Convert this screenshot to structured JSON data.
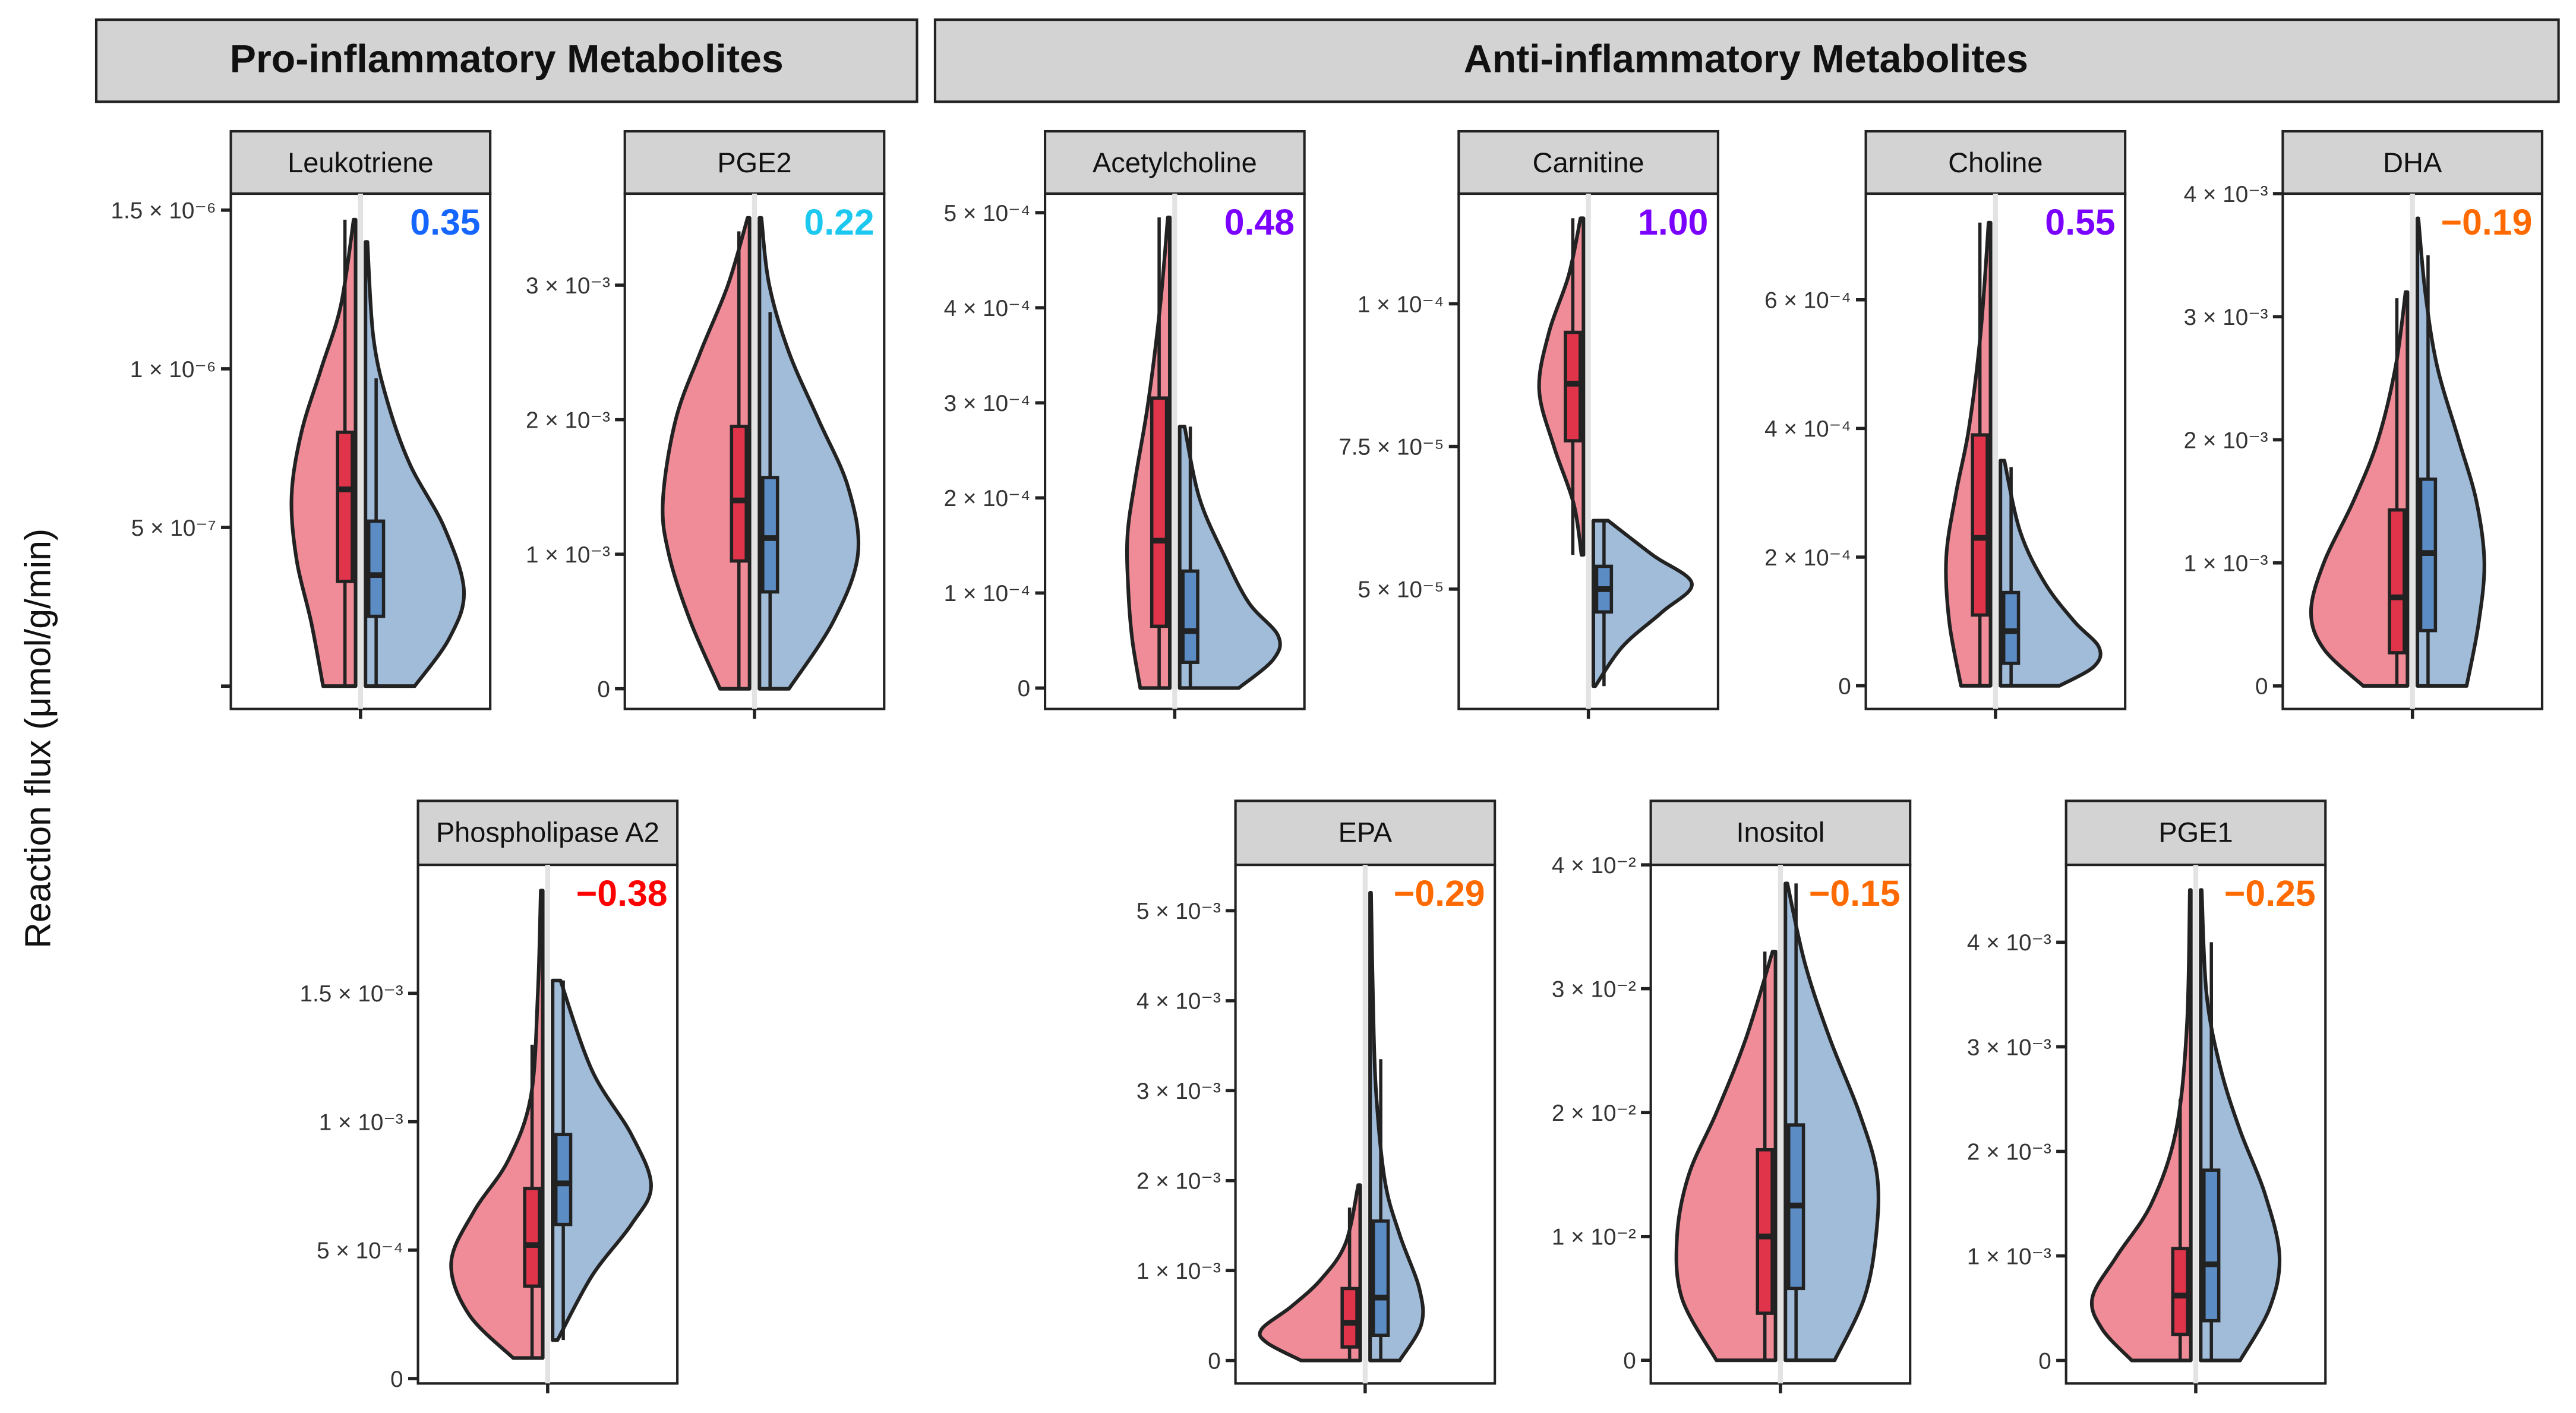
{
  "headers": {
    "pro": "Pro-inflammatory Metabolites",
    "anti": "Anti-inflammatory Metabolites"
  },
  "y_axis_label": "Reaction flux (μmol/g/min)",
  "colors": {
    "group_a_fill": "#ef8c97",
    "group_a_box": "#e0344b",
    "group_b_fill": "#a0bcd9",
    "group_b_box": "#5b8cc4",
    "strip_bg": "#d3d3d3"
  },
  "chart_data": [
    {
      "type": "violin",
      "title": "Leukotriene",
      "correlation": "0.35",
      "correlation_color": "#1565ff",
      "ylim": [
        -7.2e-08,
        1.552e-06
      ],
      "ticks": [
        {
          "value": 0,
          "label": ""
        },
        {
          "value": 5e-07,
          "label": "5 × 10⁻⁷"
        },
        {
          "value": 1e-06,
          "label": "1 × 10⁻⁶"
        },
        {
          "value": 1.5e-06,
          "label": "1.5 × 10⁻⁶"
        }
      ],
      "group_a": {
        "density": [
          [
            0,
            0.33
          ],
          [
            2e-07,
            0.45
          ],
          [
            4e-07,
            0.6
          ],
          [
            6e-07,
            0.65
          ],
          [
            8e-07,
            0.55
          ],
          [
            1e-06,
            0.35
          ],
          [
            1.2e-06,
            0.15
          ],
          [
            1.47e-06,
            0.02
          ]
        ],
        "box": {
          "min": 0,
          "q1": 3.3e-07,
          "median": 6.2e-07,
          "q3": 8e-07,
          "max": 1.47e-06
        }
      },
      "group_b": {
        "density": [
          [
            0,
            0.5
          ],
          [
            1.5e-07,
            0.85
          ],
          [
            3e-07,
            1.0
          ],
          [
            5e-07,
            0.8
          ],
          [
            7e-07,
            0.45
          ],
          [
            9e-07,
            0.22
          ],
          [
            1.1e-06,
            0.08
          ],
          [
            1.4e-06,
            0.02
          ]
        ],
        "box": {
          "min": 0,
          "q1": 2.2e-07,
          "median": 3.5e-07,
          "q3": 5.2e-07,
          "max": 9.7e-07
        }
      }
    },
    {
      "type": "violin",
      "title": "PGE2",
      "correlation": "0.22",
      "correlation_color": "#1cc8f0",
      "ylim": [
        -0.00015,
        0.00368
      ],
      "ticks": [
        {
          "value": 0,
          "label": "0"
        },
        {
          "value": 0.001,
          "label": "1 × 10⁻³"
        },
        {
          "value": 0.002,
          "label": "2 × 10⁻³"
        },
        {
          "value": 0.003,
          "label": "3 × 10⁻³"
        }
      ],
      "group_a": {
        "density": [
          [
            0,
            0.3
          ],
          [
            0.0005,
            0.6
          ],
          [
            0.001,
            0.82
          ],
          [
            0.0014,
            0.88
          ],
          [
            0.002,
            0.75
          ],
          [
            0.0025,
            0.5
          ],
          [
            0.003,
            0.22
          ],
          [
            0.0035,
            0.02
          ]
        ],
        "box": {
          "min": 0,
          "q1": 0.00095,
          "median": 0.0014,
          "q3": 0.00195,
          "max": 0.0034
        }
      },
      "group_b": {
        "density": [
          [
            0,
            0.3
          ],
          [
            0.0005,
            0.75
          ],
          [
            0.001,
            1.0
          ],
          [
            0.0015,
            0.9
          ],
          [
            0.002,
            0.6
          ],
          [
            0.0025,
            0.3
          ],
          [
            0.003,
            0.1
          ],
          [
            0.0035,
            0.02
          ]
        ],
        "box": {
          "min": 0,
          "q1": 0.00072,
          "median": 0.00112,
          "q3": 0.00157,
          "max": 0.0028
        }
      }
    },
    {
      "type": "violin",
      "title": "Acetylcholine",
      "correlation": "0.48",
      "correlation_color": "#7a00ff",
      "ylim": [
        -2.2e-05,
        0.00052
      ],
      "ticks": [
        {
          "value": 0,
          "label": "0"
        },
        {
          "value": 0.0001,
          "label": "1 × 10⁻⁴"
        },
        {
          "value": 0.0002,
          "label": "2 × 10⁻⁴"
        },
        {
          "value": 0.0003,
          "label": "3 × 10⁻⁴"
        },
        {
          "value": 0.0004,
          "label": "4 × 10⁻⁴"
        },
        {
          "value": 0.0005,
          "label": "5 × 10⁻⁴"
        }
      ],
      "group_a": {
        "density": [
          [
            0,
            0.3
          ],
          [
            5e-05,
            0.38
          ],
          [
            0.0001,
            0.42
          ],
          [
            0.00016,
            0.43
          ],
          [
            0.00022,
            0.35
          ],
          [
            0.0003,
            0.22
          ],
          [
            0.0004,
            0.1
          ],
          [
            0.000495,
            0.02
          ]
        ],
        "box": {
          "min": 0,
          "q1": 6.5e-05,
          "median": 0.000155,
          "q3": 0.000305,
          "max": 0.000495
        }
      },
      "group_b": {
        "density": [
          [
            0,
            0.6
          ],
          [
            3e-05,
            0.95
          ],
          [
            5.5e-05,
            1.0
          ],
          [
            9e-05,
            0.7
          ],
          [
            0.00014,
            0.45
          ],
          [
            0.0002,
            0.2
          ],
          [
            0.000275,
            0.05
          ]
        ],
        "box": {
          "min": 0,
          "q1": 2.7e-05,
          "median": 6e-05,
          "q3": 0.000123,
          "max": 0.000275
        }
      }
    },
    {
      "type": "violin",
      "title": "Carnitine",
      "correlation": "1.00",
      "correlation_color": "#7a00ff",
      "ylim": [
        2.9e-05,
        0.0001193
      ],
      "ticks": [
        {
          "value": 5e-05,
          "label": "5 × 10⁻⁵"
        },
        {
          "value": 7.5e-05,
          "label": "7.5 × 10⁻⁵"
        },
        {
          "value": 0.0001,
          "label": "1 × 10⁻⁴"
        }
      ],
      "group_a": {
        "density": [
          [
            5.6e-05,
            0.02
          ],
          [
            6.5e-05,
            0.1
          ],
          [
            7.5e-05,
            0.3
          ],
          [
            8.5e-05,
            0.45
          ],
          [
            9.5e-05,
            0.35
          ],
          [
            0.000105,
            0.15
          ],
          [
            0.000115,
            0.03
          ]
        ],
        "box": {
          "min": 5.6e-05,
          "q1": 7.6e-05,
          "median": 8.6e-05,
          "q3": 9.5e-05,
          "max": 0.000115
        }
      },
      "group_b": {
        "density": [
          [
            3.3e-05,
            0.02
          ],
          [
            4e-05,
            0.3
          ],
          [
            4.6e-05,
            0.7
          ],
          [
            5.1e-05,
            1.0
          ],
          [
            5.6e-05,
            0.6
          ],
          [
            6.2e-05,
            0.15
          ]
        ],
        "box": {
          "min": 3.3e-05,
          "q1": 4.6e-05,
          "median": 5e-05,
          "q3": 5.4e-05,
          "max": 6.2e-05
        }
      }
    },
    {
      "type": "violin",
      "title": "Choline",
      "correlation": "0.55",
      "correlation_color": "#7a00ff",
      "ylim": [
        -3.6e-05,
        0.000765
      ],
      "ticks": [
        {
          "value": 0,
          "label": "0"
        },
        {
          "value": 0.0002,
          "label": "2 × 10⁻⁴"
        },
        {
          "value": 0.0004,
          "label": "4 × 10⁻⁴"
        },
        {
          "value": 0.0006,
          "label": "6 × 10⁻⁴"
        }
      ],
      "group_a": {
        "density": [
          [
            0,
            0.3
          ],
          [
            0.0001,
            0.42
          ],
          [
            0.0002,
            0.45
          ],
          [
            0.0003,
            0.35
          ],
          [
            0.0004,
            0.22
          ],
          [
            0.00055,
            0.1
          ],
          [
            0.00072,
            0.02
          ]
        ],
        "box": {
          "min": 0,
          "q1": 0.00011,
          "median": 0.00023,
          "q3": 0.00039,
          "max": 0.00072
        }
      },
      "group_b": {
        "density": [
          [
            0,
            0.6
          ],
          [
            3e-05,
            0.95
          ],
          [
            6e-05,
            1.0
          ],
          [
            0.0001,
            0.75
          ],
          [
            0.00016,
            0.45
          ],
          [
            0.00024,
            0.2
          ],
          [
            0.00035,
            0.04
          ]
        ],
        "box": {
          "min": 0,
          "q1": 3.5e-05,
          "median": 8.5e-05,
          "q3": 0.000145,
          "max": 0.00034
        }
      }
    },
    {
      "type": "violin",
      "title": "DHA",
      "correlation": "−0.19",
      "correlation_color": "#ff6a00",
      "ylim": [
        -0.000187,
        0.004
      ],
      "ticks": [
        {
          "value": 0,
          "label": "0"
        },
        {
          "value": 0.001,
          "label": "1 × 10⁻³"
        },
        {
          "value": 0.002,
          "label": "2 × 10⁻³"
        },
        {
          "value": 0.003,
          "label": "3 × 10⁻³"
        },
        {
          "value": 0.004,
          "label": "4 × 10⁻³"
        }
      ],
      "group_a": {
        "density": [
          [
            0,
            0.45
          ],
          [
            0.0003,
            0.85
          ],
          [
            0.0006,
            0.98
          ],
          [
            0.001,
            0.85
          ],
          [
            0.0015,
            0.55
          ],
          [
            0.002,
            0.3
          ],
          [
            0.0026,
            0.12
          ],
          [
            0.0032,
            0.02
          ]
        ],
        "box": {
          "min": 0,
          "q1": 0.00027,
          "median": 0.00072,
          "q3": 0.00143,
          "max": 0.00315
        }
      },
      "group_b": {
        "density": [
          [
            0,
            0.5
          ],
          [
            0.0005,
            0.62
          ],
          [
            0.001,
            0.68
          ],
          [
            0.0015,
            0.6
          ],
          [
            0.002,
            0.42
          ],
          [
            0.0026,
            0.2
          ],
          [
            0.0032,
            0.08
          ],
          [
            0.0038,
            0.01
          ]
        ],
        "box": {
          "min": 0,
          "q1": 0.00045,
          "median": 0.00108,
          "q3": 0.00168,
          "max": 0.0035
        }
      }
    },
    {
      "type": "violin",
      "title": "Phospholipase A2",
      "correlation": "−0.38",
      "correlation_color": "#ff0000",
      "ylim": [
        -1.9e-05,
        0.002
      ],
      "ticks": [
        {
          "value": 0,
          "label": "0"
        },
        {
          "value": 0.0005,
          "label": "5 × 10⁻⁴"
        },
        {
          "value": 0.001,
          "label": "1 × 10⁻³"
        },
        {
          "value": 0.0015,
          "label": "1.5 × 10⁻³"
        }
      ],
      "group_a": {
        "density": [
          [
            8e-05,
            0.3
          ],
          [
            0.00025,
            0.75
          ],
          [
            0.00045,
            0.93
          ],
          [
            0.00065,
            0.7
          ],
          [
            0.00085,
            0.35
          ],
          [
            0.0011,
            0.12
          ],
          [
            0.0015,
            0.05
          ],
          [
            0.0019,
            0.02
          ]
        ],
        "box": {
          "min": 8e-05,
          "q1": 0.00036,
          "median": 0.00052,
          "q3": 0.00074,
          "max": 0.0013
        }
      },
      "group_b": {
        "density": [
          [
            0.00015,
            0.05
          ],
          [
            0.0004,
            0.4
          ],
          [
            0.0006,
            0.8
          ],
          [
            0.00075,
            1.0
          ],
          [
            0.00095,
            0.8
          ],
          [
            0.0012,
            0.4
          ],
          [
            0.00155,
            0.08
          ]
        ],
        "box": {
          "min": 0.00015,
          "q1": 0.0006,
          "median": 0.00076,
          "q3": 0.00095,
          "max": 0.00155
        }
      }
    },
    {
      "type": "violin",
      "title": "EPA",
      "correlation": "−0.29",
      "correlation_color": "#ff6a00",
      "ylim": [
        -0.000255,
        0.00551
      ],
      "ticks": [
        {
          "value": 0,
          "label": "0"
        },
        {
          "value": 0.001,
          "label": "1 × 10⁻³"
        },
        {
          "value": 0.002,
          "label": "2 × 10⁻³"
        },
        {
          "value": 0.003,
          "label": "3 × 10⁻³"
        },
        {
          "value": 0.004,
          "label": "4 × 10⁻³"
        },
        {
          "value": 0.005,
          "label": "5 × 10⁻³"
        }
      ],
      "group_a": {
        "density": [
          [
            0,
            0.6
          ],
          [
            0.0002,
            0.95
          ],
          [
            0.00035,
            1.0
          ],
          [
            0.0006,
            0.7
          ],
          [
            0.0009,
            0.4
          ],
          [
            0.0013,
            0.15
          ],
          [
            0.00195,
            0.02
          ]
        ],
        "box": {
          "min": 0,
          "q1": 0.00015,
          "median": 0.00042,
          "q3": 0.0008,
          "max": 0.0017
        }
      },
      "group_b": {
        "density": [
          [
            0,
            0.3
          ],
          [
            0.0004,
            0.52
          ],
          [
            0.0008,
            0.5
          ],
          [
            0.0014,
            0.3
          ],
          [
            0.002,
            0.15
          ],
          [
            0.003,
            0.06
          ],
          [
            0.004,
            0.03
          ],
          [
            0.0052,
            0.01
          ]
        ],
        "box": {
          "min": 0,
          "q1": 0.00028,
          "median": 0.0007,
          "q3": 0.00155,
          "max": 0.00335
        }
      }
    },
    {
      "type": "violin",
      "title": "Inositol",
      "correlation": "−0.15",
      "correlation_color": "#ff6a00",
      "ylim": [
        -0.00187,
        0.04
      ],
      "ticks": [
        {
          "value": 0,
          "label": "0"
        },
        {
          "value": 0.01,
          "label": "1 × 10⁻²"
        },
        {
          "value": 0.02,
          "label": "2 × 10⁻²"
        },
        {
          "value": 0.03,
          "label": "3 × 10⁻²"
        },
        {
          "value": 0.04,
          "label": "4 × 10⁻²"
        }
      ],
      "group_a": {
        "density": [
          [
            0,
            0.6
          ],
          [
            0.005,
            0.95
          ],
          [
            0.01,
            1.0
          ],
          [
            0.015,
            0.88
          ],
          [
            0.02,
            0.6
          ],
          [
            0.026,
            0.3
          ],
          [
            0.033,
            0.03
          ]
        ],
        "box": {
          "min": 0,
          "q1": 0.0038,
          "median": 0.01,
          "q3": 0.017,
          "max": 0.033
        }
      },
      "group_b": {
        "density": [
          [
            0,
            0.5
          ],
          [
            0.005,
            0.8
          ],
          [
            0.01,
            0.92
          ],
          [
            0.015,
            0.93
          ],
          [
            0.02,
            0.75
          ],
          [
            0.026,
            0.45
          ],
          [
            0.032,
            0.2
          ],
          [
            0.0385,
            0.02
          ]
        ],
        "box": {
          "min": 0,
          "q1": 0.0058,
          "median": 0.0125,
          "q3": 0.019,
          "max": 0.0385
        }
      }
    },
    {
      "type": "violin",
      "title": "PGE1",
      "correlation": "−0.25",
      "correlation_color": "#ff6a00",
      "ylim": [
        -0.00022,
        0.00474
      ],
      "ticks": [
        {
          "value": 0,
          "label": "0"
        },
        {
          "value": 0.001,
          "label": "1 × 10⁻³"
        },
        {
          "value": 0.002,
          "label": "2 × 10⁻³"
        },
        {
          "value": 0.003,
          "label": "3 × 10⁻³"
        },
        {
          "value": 0.004,
          "label": "4 × 10⁻³"
        }
      ],
      "group_a": {
        "density": [
          [
            0,
            0.6
          ],
          [
            0.0003,
            0.9
          ],
          [
            0.0006,
            1.0
          ],
          [
            0.001,
            0.75
          ],
          [
            0.0015,
            0.4
          ],
          [
            0.0022,
            0.15
          ],
          [
            0.0032,
            0.04
          ],
          [
            0.0045,
            0.01
          ]
        ],
        "box": {
          "min": 0,
          "q1": 0.00025,
          "median": 0.00062,
          "q3": 0.00107,
          "max": 0.0025
        }
      },
      "group_b": {
        "density": [
          [
            0,
            0.4
          ],
          [
            0.0005,
            0.7
          ],
          [
            0.001,
            0.8
          ],
          [
            0.0016,
            0.65
          ],
          [
            0.0022,
            0.4
          ],
          [
            0.0028,
            0.2
          ],
          [
            0.0035,
            0.06
          ],
          [
            0.0045,
            0.01
          ]
        ],
        "box": {
          "min": 0,
          "q1": 0.00038,
          "median": 0.00092,
          "q3": 0.00182,
          "max": 0.004
        }
      }
    }
  ]
}
